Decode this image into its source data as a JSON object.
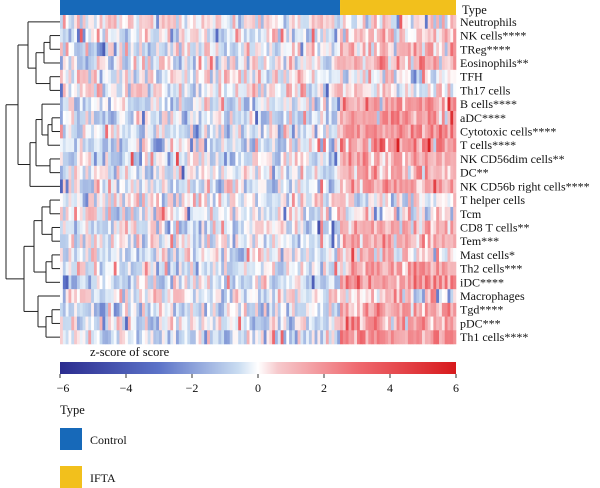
{
  "chart_data": {
    "type": "heatmap",
    "rows": [
      "Neutrophils",
      "NK cells****",
      "TReg****",
      "Eosinophils**",
      "TFH",
      "Th17 cells",
      "B cells****",
      "aDC****",
      "Cytotoxic cells****",
      "T cells****",
      "NK CD56dim cells**",
      "DC**",
      "NK CD56b right cells****",
      "T helper cells",
      "Tcm",
      "CD8 T cells**",
      "Tem***",
      "Mast cells*",
      "Th2 cells***",
      "iDC****",
      "Macrophages",
      "Tgd****",
      "pDC***",
      "Th1 cells****"
    ],
    "groups": [
      {
        "name": "Control",
        "color": "#1769b9",
        "n_samples": 99
      },
      {
        "name": "IFTA",
        "color": "#f2c01c",
        "n_samples": 41
      }
    ],
    "annotation_title": "Type",
    "colorbar": {
      "title": "z-score of score",
      "min": -6,
      "max": 6,
      "ticks": [
        -6,
        -4,
        -2,
        0,
        2,
        4,
        6
      ],
      "tick_labels": [
        "−6",
        "−4",
        "−2",
        "0",
        "2",
        "4",
        "6"
      ],
      "low_color": "#2b2c8f",
      "mid_color": "#ffffff",
      "high_color": "#d7191c"
    },
    "group_row_label_pattern": {
      "IFTA_shift_by_row": [
        0.0,
        0.6,
        0.7,
        0.5,
        0.0,
        0.1,
        1.3,
        1.4,
        1.5,
        1.4,
        1.0,
        0.9,
        1.3,
        0.0,
        0.1,
        0.9,
        1.0,
        0.6,
        1.0,
        1.3,
        0.2,
        1.3,
        1.1,
        1.5
      ]
    },
    "xlabel": "",
    "ylabel": ""
  },
  "legend": {
    "title": "Type",
    "items": [
      {
        "label": "Control",
        "color": "#1769b9"
      },
      {
        "label": "IFTA",
        "color": "#f2c01c"
      }
    ]
  }
}
